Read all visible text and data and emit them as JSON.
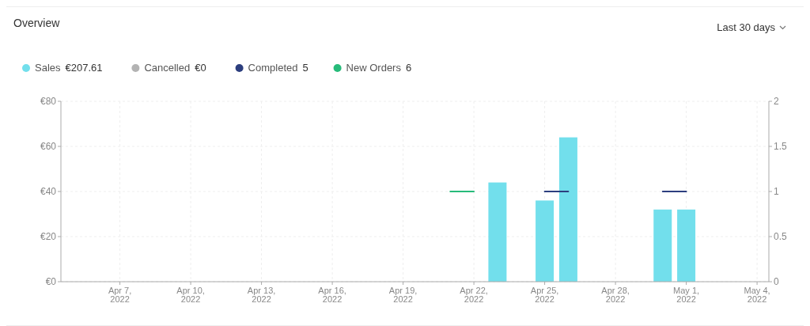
{
  "chart_data": {
    "type": "bar",
    "title": "Overview",
    "annotations": [
      "Last 30 days"
    ],
    "xlim": [
      "2022-04-04T12:00",
      "2022-05-04T12:00"
    ],
    "xticks": [
      {
        "value": "2022-04-07",
        "label": "Apr 7, 2022"
      },
      {
        "value": "2022-04-10",
        "label": "Apr 10, 2022"
      },
      {
        "value": "2022-04-13",
        "label": "Apr 13, 2022"
      },
      {
        "value": "2022-04-16",
        "label": "Apr 16, 2022"
      },
      {
        "value": "2022-04-19",
        "label": "Apr 19, 2022"
      },
      {
        "value": "2022-04-22",
        "label": "Apr 22, 2022"
      },
      {
        "value": "2022-04-25",
        "label": "Apr 25, 2022"
      },
      {
        "value": "2022-04-28",
        "label": "Apr 28, 2022"
      },
      {
        "value": "2022-05-01",
        "label": "May 1, 2022"
      },
      {
        "value": "2022-05-04",
        "label": "May 4, 2022"
      }
    ],
    "ylim": [
      0,
      80
    ],
    "yticks": [
      {
        "value": 0,
        "label": "€0"
      },
      {
        "value": 20,
        "label": "€20"
      },
      {
        "value": 40,
        "label": "€40"
      },
      {
        "value": 60,
        "label": "€60"
      },
      {
        "value": 80,
        "label": "€80"
      }
    ],
    "y2lim": [
      0,
      2
    ],
    "y2ticks": [
      0,
      0.5,
      1,
      1.5,
      2
    ],
    "grid": true,
    "legend": "top left",
    "marker": "none",
    "series": [
      {
        "name": "Sales €207.61",
        "color": "#72dfec",
        "x": [
          "2022-04-23",
          "2022-04-25",
          "2022-04-26",
          "2022-04-30",
          "2022-05-01"
        ],
        "values": [
          44,
          36,
          64,
          32,
          32
        ]
      },
      {
        "name": "Cancelled €0",
        "type": "line",
        "axis": "y2",
        "color": "#b3b3b3"
      },
      {
        "name": "Completed 5",
        "type": "line",
        "axis": "y2",
        "color": "#2c3e7e",
        "x": [
          "2022-04-25",
          "2022-04-26",
          "2022-04-27",
          "2022-04-30",
          "2022-05-01"
        ],
        "values": [
          1,
          1,
          null,
          1,
          1
        ]
      },
      {
        "name": "New Orders 6",
        "type": "line",
        "axis": "y2",
        "color": "#27bb7a",
        "x": [
          "2022-04-21",
          "2022-04-22"
        ],
        "values": [
          1,
          1
        ]
      }
    ]
  }
}
